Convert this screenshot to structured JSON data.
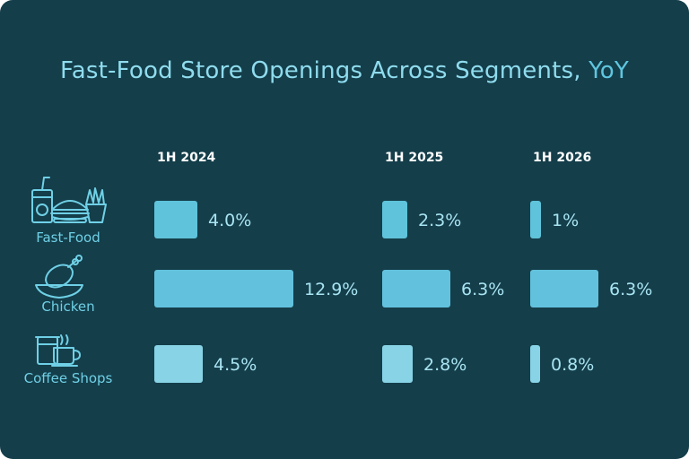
{
  "title": {
    "main": "Fast-Food Store Openings Across Segments,",
    "accent": "YoY"
  },
  "colors": {
    "background": "#143e4a",
    "title": "#8fdcee",
    "accent": "#5fc6e0",
    "text": "#a9e4f2",
    "bar_fastfood": "#5fc3db",
    "bar_chicken": "#62c2de",
    "bar_coffee": "#88d3e6"
  },
  "chart_data": {
    "type": "bar",
    "title": "Fast-Food Store Openings Across Segments, YoY",
    "periods": [
      "1H 2024",
      "1H 2025",
      "1H 2026"
    ],
    "categories": [
      "Fast-Food",
      "Chicken",
      "Coffee Shops"
    ],
    "icons": [
      "fast-food-icon",
      "chicken-icon",
      "coffee-icon"
    ],
    "series": [
      {
        "name": "1H 2024",
        "values": [
          4.0,
          12.9,
          4.5
        ],
        "labels": [
          "4.0%",
          "12.9%",
          "4.5%"
        ]
      },
      {
        "name": "1H 2025",
        "values": [
          2.3,
          6.3,
          2.8
        ],
        "labels": [
          "2.3%",
          "6.3%",
          "2.8%"
        ]
      },
      {
        "name": "1H 2026",
        "values": [
          1.0,
          6.3,
          0.8
        ],
        "labels": [
          "1%",
          "6.3%",
          "0.8%"
        ]
      }
    ],
    "unit": "%"
  }
}
